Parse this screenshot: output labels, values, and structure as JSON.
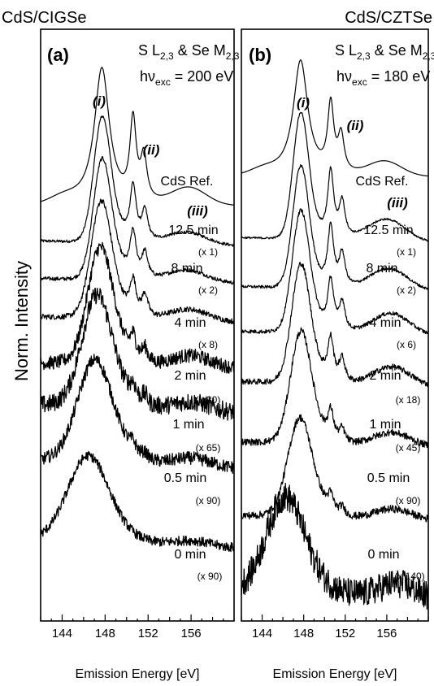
{
  "figure": {
    "ylabel": "Norm. Intensity"
  },
  "chart_data": [
    {
      "type": "line",
      "panel_label": "(a)",
      "title": "CdS/CIGSe",
      "xlabel": "Emission Energy [eV]",
      "xlim": [
        142,
        160
      ],
      "xticks": [
        144,
        148,
        152,
        156
      ],
      "annotation_line1": {
        "base": "S L",
        "sub": "2,3",
        "mid": " & Se M",
        "sub2": "2,3"
      },
      "annotation_line2": {
        "base": "hν",
        "sub": "exc",
        "tail": " = 200 eV"
      },
      "peak_labels": [
        "(i)",
        "(ii)",
        "(iii)"
      ],
      "grid": false,
      "series": [
        {
          "name": "CdS Ref.",
          "factor": ""
        },
        {
          "name": "12.5 min",
          "factor": "(x 1)"
        },
        {
          "name": "8 min",
          "factor": "(x 2)"
        },
        {
          "name": "4 min",
          "factor": "(x 8)"
        },
        {
          "name": "2 min",
          "factor": "(x 30)"
        },
        {
          "name": "1 min",
          "factor": "(x 65)"
        },
        {
          "name": "0.5 min",
          "factor": "(x 90)"
        },
        {
          "name": "0 min",
          "factor": "(x 90)"
        }
      ]
    },
    {
      "type": "line",
      "panel_label": "(b)",
      "title": "CdS/CZTSe",
      "xlabel": "Emission Energy [eV]",
      "xlim": [
        142,
        160
      ],
      "xticks": [
        144,
        148,
        152,
        156
      ],
      "annotation_line1": {
        "base": "S L",
        "sub": "2,3",
        "mid": " & Se M",
        "sub2": "2,3"
      },
      "annotation_line2": {
        "base": "hν",
        "sub": "exc",
        "tail": " = 180 eV"
      },
      "peak_labels": [
        "(i)",
        "(ii)",
        "(iii)"
      ],
      "grid": false,
      "series": [
        {
          "name": "CdS Ref.",
          "factor": ""
        },
        {
          "name": "12.5 min",
          "factor": "(x 1)"
        },
        {
          "name": "8 min",
          "factor": "(x 2)"
        },
        {
          "name": "4 min",
          "factor": "(x 6)"
        },
        {
          "name": "2 min",
          "factor": "(x 18)"
        },
        {
          "name": "1 min",
          "factor": "(x 45)"
        },
        {
          "name": "0.5 min",
          "factor": "(x 90)"
        },
        {
          "name": "0 min",
          "factor": "(x 140)"
        }
      ]
    }
  ]
}
